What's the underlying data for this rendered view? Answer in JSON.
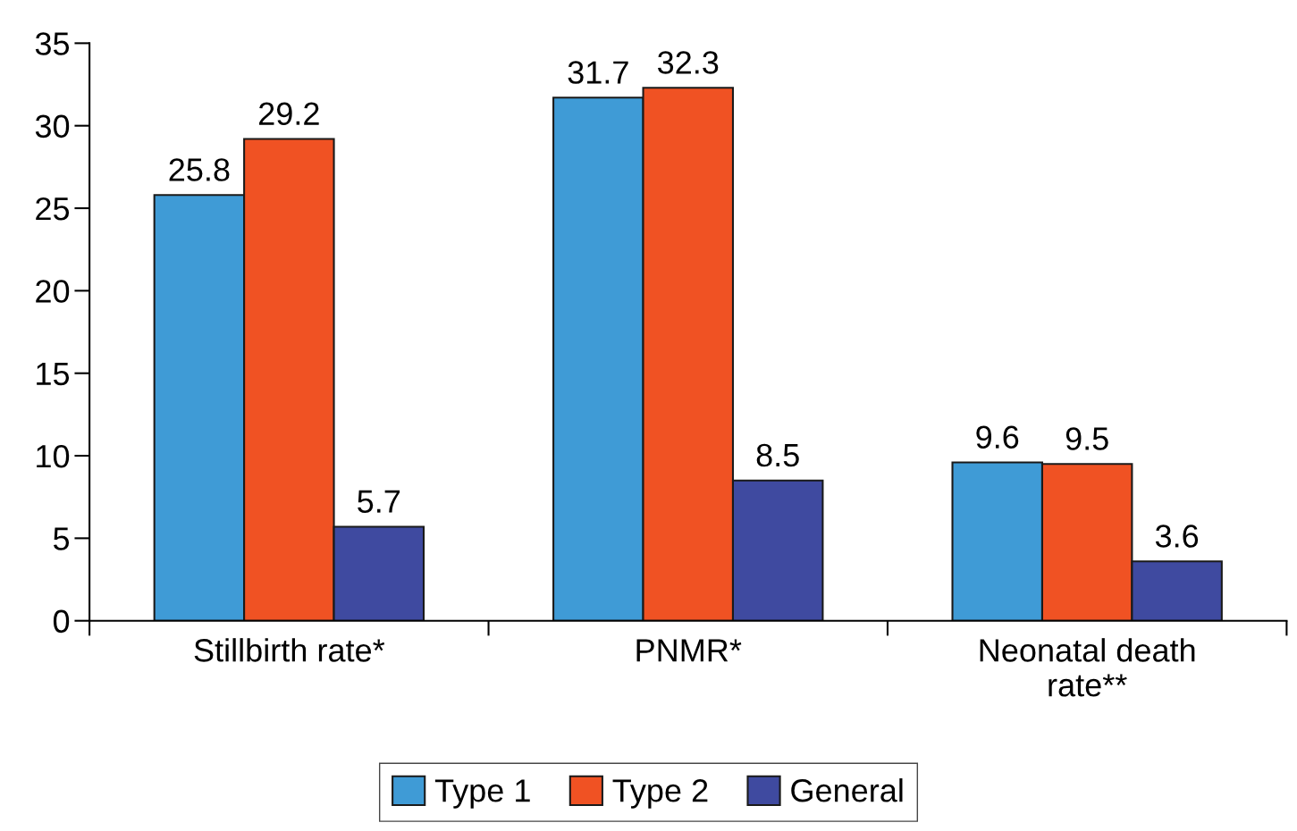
{
  "chart_data": {
    "type": "bar",
    "categories": [
      "Stillbirth rate*",
      "PNMR*",
      "Neonatal death\nrate**"
    ],
    "series": [
      {
        "name": "Type 1",
        "color": "#3f9bd6",
        "values": [
          25.8,
          31.7,
          9.6
        ]
      },
      {
        "name": "Type 2",
        "color": "#f05223",
        "values": [
          29.2,
          32.3,
          9.5
        ]
      },
      {
        "name": "General",
        "color": "#3f4aa0",
        "values": [
          5.7,
          8.5,
          3.6
        ]
      }
    ],
    "ylim": [
      0,
      35
    ],
    "yticks": [
      0,
      5,
      10,
      15,
      20,
      25,
      30,
      35
    ],
    "data_labels": true,
    "grid": false,
    "legend": "bottom"
  }
}
